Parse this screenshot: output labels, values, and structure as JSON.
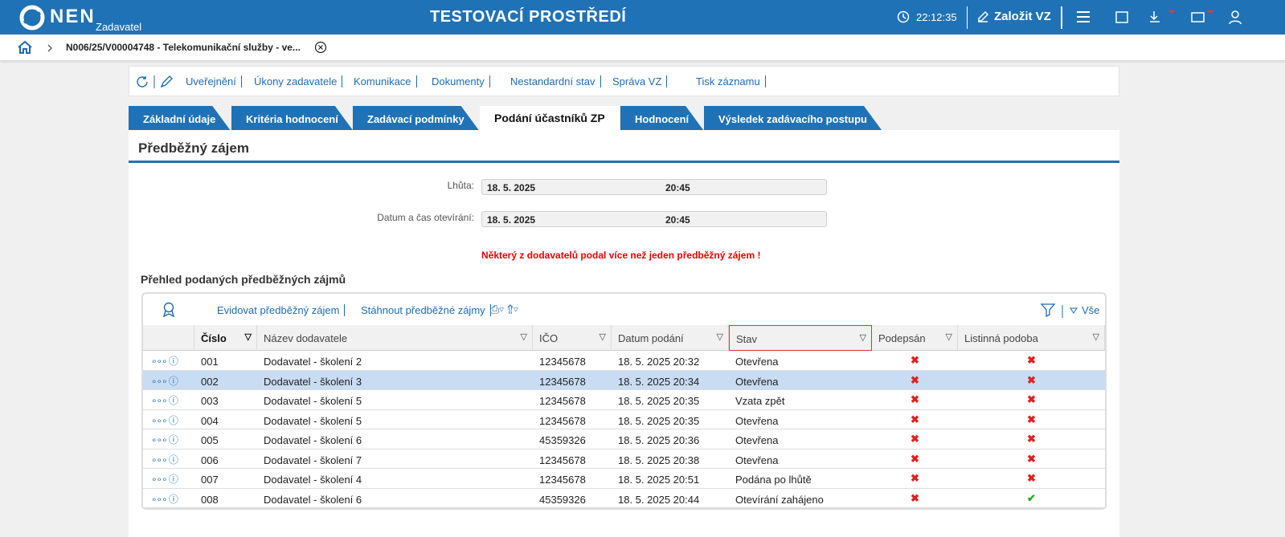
{
  "header": {
    "logo": "NEN",
    "role": "Zadavatel",
    "title": "TESTOVACÍ PROSTŘEDÍ",
    "time": "22:12:35",
    "create_button": "Založit VZ"
  },
  "breadcrumb": {
    "item": "N006/25/V00004748 - Telekomunikační služby - ve..."
  },
  "toolbar": {
    "items": [
      "Uveřejnění",
      "Úkony zadavatele",
      "Komunikace",
      "Dokumenty",
      "Nestandardní stav",
      "Správa VZ",
      "Tisk záznamu"
    ]
  },
  "tabs": {
    "items": [
      "Základní údaje",
      "Kritéria hodnocení",
      "Zadávací podmínky",
      "Podání účastníků ZP",
      "Hodnocení",
      "Výsledek zadávacího postupu"
    ],
    "active": 3
  },
  "section_title": "Předběžný zájem",
  "form": {
    "fields": [
      {
        "label": "Lhůta:",
        "date": "18. 5. 2025",
        "time": "20:45"
      },
      {
        "label": "Datum a čas otevírání:",
        "date": "18. 5. 2025",
        "time": "20:45"
      }
    ]
  },
  "warning": "Některý z dodavatelů podal více než jeden předběžný zájem !",
  "table": {
    "title": "Přehled podaných předběžných zájmů",
    "actions": [
      "Evidovat předběžný zájem",
      "Stáhnout předběžné zájmy"
    ],
    "filter_label": "Vše",
    "columns": [
      "Číslo",
      "Název dodavatele",
      "IČO",
      "Datum podání",
      "Stav",
      "Podepsán",
      "Listinná podoba"
    ],
    "selected_row": 1,
    "rows": [
      {
        "number": "001",
        "supplier": "Dodavatel - školení 2",
        "ico": "12345678",
        "submitted": "18. 5. 2025 20:32",
        "status": "Otevřena",
        "signed": false,
        "paper": false
      },
      {
        "number": "002",
        "supplier": "Dodavatel - školení 3",
        "ico": "12345678",
        "submitted": "18. 5. 2025 20:34",
        "status": "Otevřena",
        "signed": false,
        "paper": false
      },
      {
        "number": "003",
        "supplier": "Dodavatel - školení 5",
        "ico": "12345678",
        "submitted": "18. 5. 2025 20:35",
        "status": "Vzata zpět",
        "signed": false,
        "paper": false
      },
      {
        "number": "004",
        "supplier": "Dodavatel - školení 5",
        "ico": "12345678",
        "submitted": "18. 5. 2025 20:35",
        "status": "Otevřena",
        "signed": false,
        "paper": false
      },
      {
        "number": "005",
        "supplier": "Dodavatel - školení 6",
        "ico": "45359326",
        "submitted": "18. 5. 2025 20:36",
        "status": "Otevřena",
        "signed": false,
        "paper": false
      },
      {
        "number": "006",
        "supplier": "Dodavatel - školení 7",
        "ico": "12345678",
        "submitted": "18. 5. 2025 20:38",
        "status": "Otevřena",
        "signed": false,
        "paper": false
      },
      {
        "number": "007",
        "supplier": "Dodavatel - školení 4",
        "ico": "12345678",
        "submitted": "18. 5. 2025 20:51",
        "status": "Podána po lhůtě",
        "signed": false,
        "paper": false
      },
      {
        "number": "008",
        "supplier": "Dodavatel - školení 6",
        "ico": "45359326",
        "submitted": "18. 5. 2025 20:44",
        "status": "Otevírání zahájeno",
        "signed": false,
        "paper": true
      }
    ]
  }
}
